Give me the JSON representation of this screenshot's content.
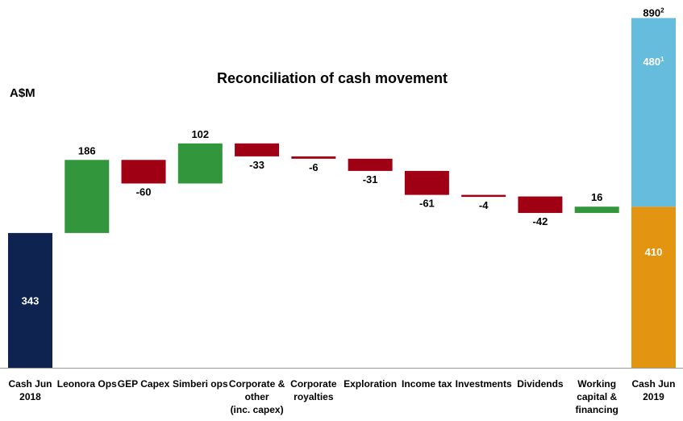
{
  "chart_data": {
    "type": "waterfall",
    "title": "Reconciliation of cash movement",
    "unit": "A$M",
    "colors": {
      "total": "#0f2350",
      "increase": "#32963c",
      "decrease": "#a00014",
      "stack_bottom": "#e39512",
      "stack_top": "#66bcdc",
      "axis": "#9a9a9a"
    },
    "bars": [
      {
        "label": "Cash Jun 2018",
        "label_lines": [
          "Cash Jun",
          "2018"
        ],
        "kind": "total",
        "value": 343,
        "display": "343"
      },
      {
        "label": "Leonora Ops",
        "label_lines": [
          "Leonora Ops"
        ],
        "kind": "increase",
        "value": 186,
        "display": "186"
      },
      {
        "label": "GEP Capex",
        "label_lines": [
          "GEP Capex"
        ],
        "kind": "decrease",
        "value": -60,
        "display": "-60"
      },
      {
        "label": "Simberi ops",
        "label_lines": [
          "Simberi ops"
        ],
        "kind": "increase",
        "value": 102,
        "display": "102"
      },
      {
        "label": "Corporate & other (inc. capex)",
        "label_lines": [
          "Corporate &",
          "other",
          "(inc. capex)"
        ],
        "kind": "decrease",
        "value": -33,
        "display": "-33"
      },
      {
        "label": "Corporate royalties",
        "label_lines": [
          "Corporate",
          "royalties"
        ],
        "kind": "decrease",
        "value": -6,
        "display": "-6"
      },
      {
        "label": "Exploration",
        "label_lines": [
          "Exploration"
        ],
        "kind": "decrease",
        "value": -31,
        "display": "-31"
      },
      {
        "label": "Income tax",
        "label_lines": [
          "Income tax"
        ],
        "kind": "decrease",
        "value": -61,
        "display": "-61"
      },
      {
        "label": "Investments",
        "label_lines": [
          "Investments"
        ],
        "kind": "decrease",
        "value": -4,
        "display": "-4"
      },
      {
        "label": "Dividends",
        "label_lines": [
          "Dividends"
        ],
        "kind": "decrease",
        "value": -42,
        "display": "-42"
      },
      {
        "label": "Working capital & financing",
        "label_lines": [
          "Working",
          "capital &",
          "financing"
        ],
        "kind": "increase",
        "value": 16,
        "display": "16"
      },
      {
        "label": "Cash Jun 2019",
        "label_lines": [
          "Cash Jun",
          "2019"
        ],
        "kind": "stacked_total",
        "segments": [
          {
            "value": 410,
            "display": "410",
            "color_key": "stack_bottom"
          },
          {
            "value": 480,
            "display": "480",
            "superscript": "1",
            "color_key": "stack_top"
          }
        ],
        "total": 890,
        "total_display": "890",
        "total_superscript": "2"
      }
    ]
  }
}
